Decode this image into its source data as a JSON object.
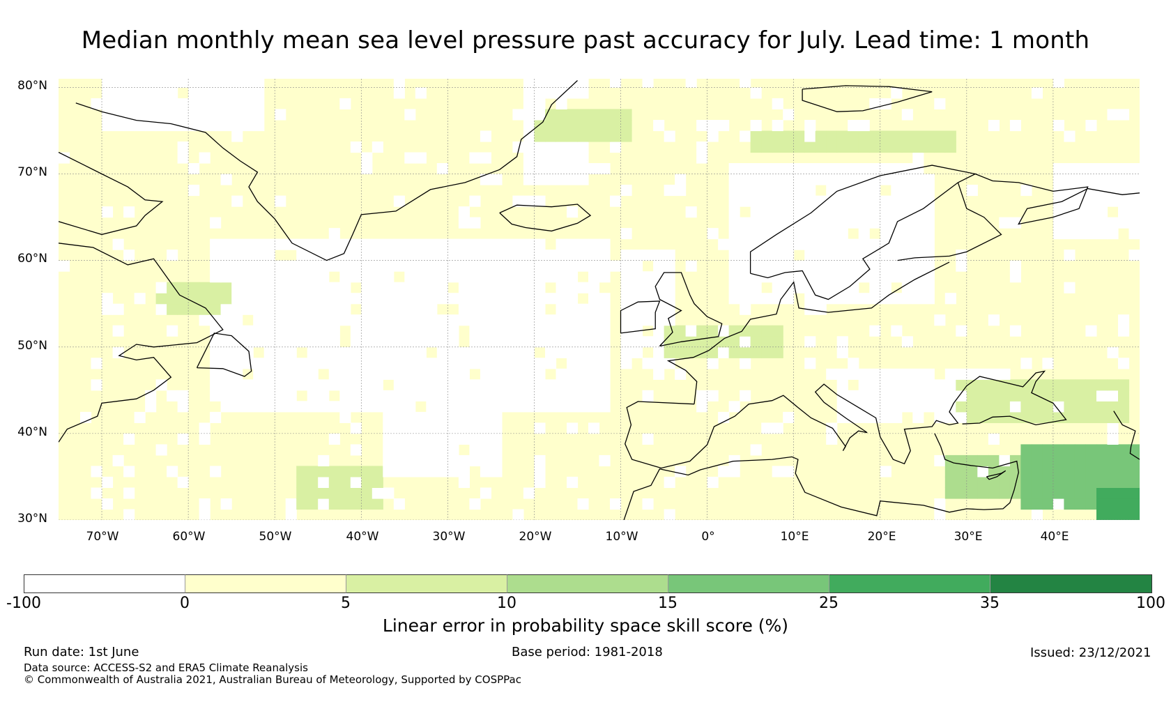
{
  "title": "Median monthly mean sea level pressure past accuracy for July. Lead time: 1 month",
  "map": {
    "latitude_labels": [
      "80°N",
      "70°N",
      "60°N",
      "50°N",
      "40°N",
      "30°N"
    ],
    "longitude_labels": [
      "70°W",
      "60°W",
      "50°W",
      "40°W",
      "30°W",
      "20°W",
      "10°W",
      "0°",
      "10°E",
      "20°E",
      "30°E",
      "40°E"
    ],
    "lat_range": [
      30,
      81
    ],
    "lon_range": [
      -75,
      50
    ],
    "colors": {
      "band_neg": "#ffffff",
      "band_0_5": "#ffffcc",
      "band_5_10": "#d9f0a3",
      "band_10_15": "#addd8e",
      "band_15_25": "#78c679",
      "band_25_35": "#41ab5d",
      "band_35_100": "#238443"
    }
  },
  "colorbar": {
    "ticks": [
      "-100",
      "0",
      "5",
      "10",
      "15",
      "25",
      "35",
      "100"
    ],
    "segment_colors": [
      "#ffffff",
      "#ffffcc",
      "#d9f0a3",
      "#addd8e",
      "#78c679",
      "#41ab5d",
      "#238443"
    ],
    "label": "Linear error in probability space skill score (%)"
  },
  "footer": {
    "run_date": "Run date: 1st June",
    "base_period": "Base period: 1981-2018",
    "issued": "Issued: 23/12/2021",
    "data_source": "Data source: ACCESS-S2 and ERA5 Climate Reanalysis",
    "copyright": "© Commonwealth of Australia 2021, Australian Bureau of Meteorology, Supported by COSPPac"
  }
}
